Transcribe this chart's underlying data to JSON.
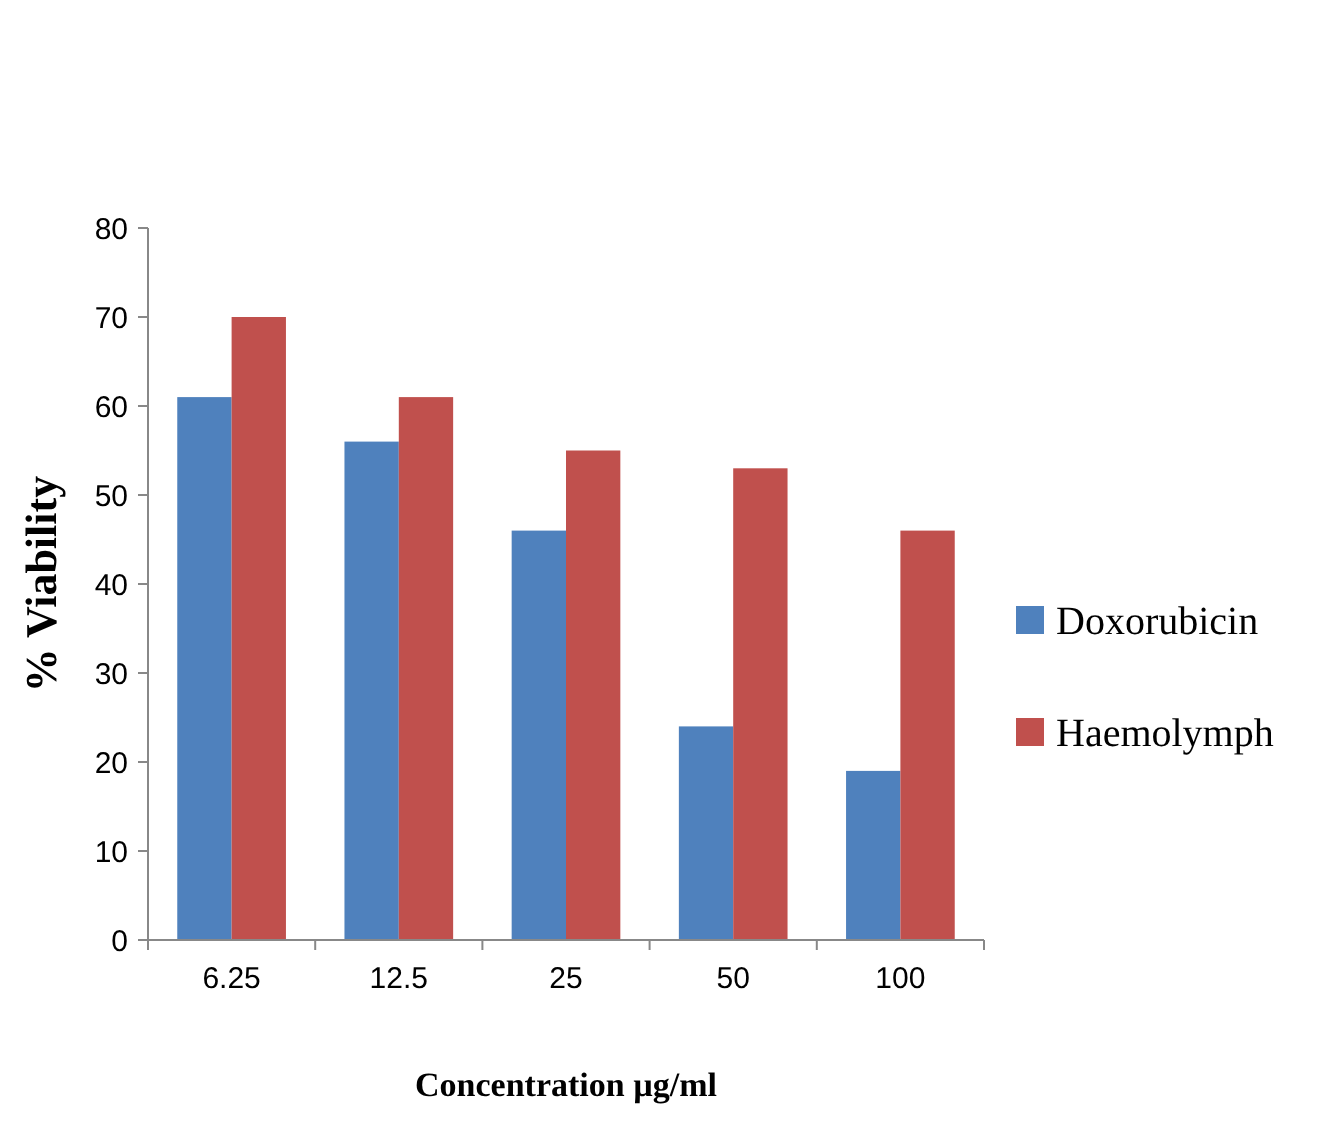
{
  "chart_data": {
    "type": "bar",
    "xlabel": "Concentration µg/ml",
    "ylabel": "% Viability",
    "categories": [
      "6.25",
      "12.5",
      "25",
      "50",
      "100"
    ],
    "series": [
      {
        "name": "Doxorubicin",
        "color": "#4f81bd",
        "values": [
          61,
          56,
          46,
          24,
          19
        ]
      },
      {
        "name": "Haemolymph",
        "color": "#c0504d",
        "values": [
          70,
          61,
          55,
          53,
          46
        ]
      }
    ],
    "ylim": [
      0,
      80
    ],
    "yticks": [
      0,
      10,
      20,
      30,
      40,
      50,
      60,
      70,
      80
    ],
    "grid": false,
    "legend": "right"
  }
}
